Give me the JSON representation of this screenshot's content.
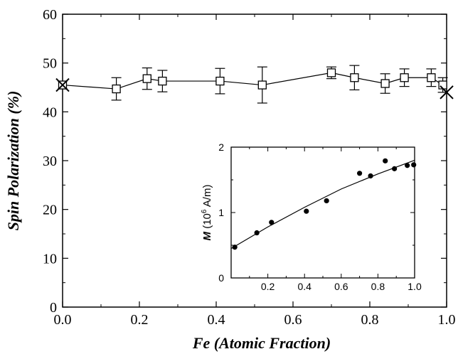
{
  "chart_data": [
    {
      "type": "line",
      "xlabel": "Fe (Atomic Fraction)",
      "ylabel": "Spin Polarization (%)",
      "xlim": [
        0,
        1
      ],
      "ylim": [
        0,
        60
      ],
      "xticks": [
        "0.0",
        "0.2",
        "0.4",
        "0.6",
        "0.8",
        "1.0"
      ],
      "yticks": [
        "0",
        "10",
        "20",
        "30",
        "40",
        "50",
        "60"
      ],
      "series": [
        {
          "marker": "square",
          "points": [
            {
              "x": 0.0,
              "y": 45.5,
              "err": 0.8
            },
            {
              "x": 0.14,
              "y": 44.7,
              "err": 2.3
            },
            {
              "x": 0.22,
              "y": 46.8,
              "err": 2.2
            },
            {
              "x": 0.26,
              "y": 46.3,
              "err": 2.2
            },
            {
              "x": 0.41,
              "y": 46.3,
              "err": 2.6
            },
            {
              "x": 0.52,
              "y": 45.5,
              "err": 3.7
            },
            {
              "x": 0.7,
              "y": 48.0,
              "err": 1.2
            },
            {
              "x": 0.76,
              "y": 47.0,
              "err": 2.5
            },
            {
              "x": 0.84,
              "y": 45.8,
              "err": 2.0
            },
            {
              "x": 0.89,
              "y": 47.0,
              "err": 1.8
            },
            {
              "x": 0.96,
              "y": 47.0,
              "err": 1.8
            },
            {
              "x": 0.99,
              "y": 45.5,
              "err": 1.5
            }
          ]
        },
        {
          "marker": "x",
          "points": [
            {
              "x": 0.0,
              "y": 45.5
            },
            {
              "x": 1.0,
              "y": 44.0
            }
          ]
        }
      ]
    },
    {
      "type": "scatter",
      "inset": true,
      "xlabel_parts": {
        "italic": "M",
        "open": "(10",
        "sup": "6",
        "close": " A/m)"
      },
      "xlim": [
        0,
        1
      ],
      "ylim": [
        0,
        2
      ],
      "xticks": [
        "0.2",
        "0.4",
        "0.6",
        "0.8",
        "1.0"
      ],
      "yticks": [
        "0",
        "1",
        "2"
      ],
      "points": [
        {
          "x": 0.02,
          "y": 0.47
        },
        {
          "x": 0.14,
          "y": 0.69
        },
        {
          "x": 0.22,
          "y": 0.85
        },
        {
          "x": 0.41,
          "y": 1.02
        },
        {
          "x": 0.52,
          "y": 1.18
        },
        {
          "x": 0.7,
          "y": 1.6
        },
        {
          "x": 0.76,
          "y": 1.56
        },
        {
          "x": 0.84,
          "y": 1.79
        },
        {
          "x": 0.89,
          "y": 1.67
        },
        {
          "x": 0.96,
          "y": 1.72
        },
        {
          "x": 0.995,
          "y": 1.73
        }
      ],
      "fit_curve": [
        {
          "x": 0.0,
          "y": 0.45
        },
        {
          "x": 0.2,
          "y": 0.78
        },
        {
          "x": 0.4,
          "y": 1.08
        },
        {
          "x": 0.6,
          "y": 1.36
        },
        {
          "x": 0.8,
          "y": 1.59
        },
        {
          "x": 1.0,
          "y": 1.8
        }
      ]
    }
  ]
}
